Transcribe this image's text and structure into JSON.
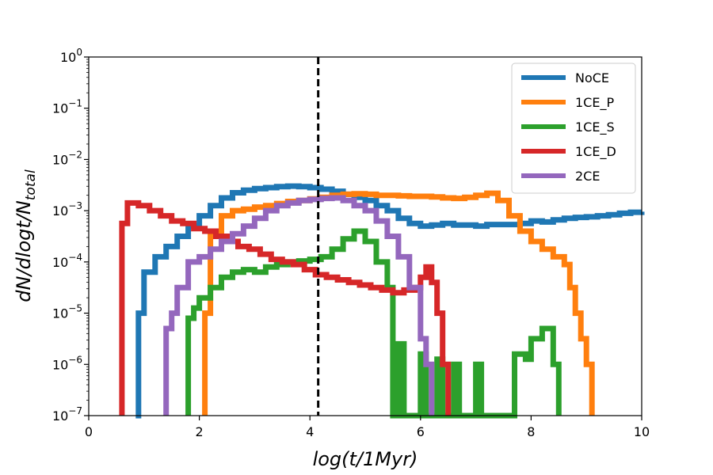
{
  "chart_data": {
    "type": "line",
    "step": true,
    "xlabel": "log(t/1Myr)",
    "ylabel": {
      "main": "dN/dlogt/N",
      "sub": "total"
    },
    "xlim": [
      0,
      10
    ],
    "ylim_log10": [
      -7,
      0
    ],
    "x_ticks": [
      0,
      2,
      4,
      6,
      8,
      10
    ],
    "x_tick_labels": [
      "0",
      "2",
      "4",
      "6",
      "8",
      "10"
    ],
    "y_ticks": [
      {
        "base": "10",
        "exp": "0",
        "log10": 0
      },
      {
        "base": "10",
        "exp": "−1",
        "log10": -1
      },
      {
        "base": "10",
        "exp": "−2",
        "log10": -2
      },
      {
        "base": "10",
        "exp": "−3",
        "log10": -3
      },
      {
        "base": "10",
        "exp": "−4",
        "log10": -4
      },
      {
        "base": "10",
        "exp": "−5",
        "log10": -5
      },
      {
        "base": "10",
        "exp": "−6",
        "log10": -6
      },
      {
        "base": "10",
        "exp": "−7",
        "log10": -7
      }
    ],
    "vline": {
      "x": 4.15,
      "style": "dashed",
      "color": "#000000"
    },
    "legend_position": "top-right",
    "series": [
      {
        "name": "NoCE",
        "color": "#1f77b4",
        "points": [
          [
            0.85,
            -7
          ],
          [
            0.9,
            -5
          ],
          [
            1.0,
            -4.2
          ],
          [
            1.2,
            -3.9
          ],
          [
            1.4,
            -3.7
          ],
          [
            1.6,
            -3.5
          ],
          [
            1.8,
            -3.3
          ],
          [
            2.0,
            -3.1
          ],
          [
            2.2,
            -2.9
          ],
          [
            2.4,
            -2.75
          ],
          [
            2.6,
            -2.65
          ],
          [
            2.8,
            -2.6
          ],
          [
            3.0,
            -2.57
          ],
          [
            3.2,
            -2.55
          ],
          [
            3.4,
            -2.53
          ],
          [
            3.6,
            -2.52
          ],
          [
            3.8,
            -2.53
          ],
          [
            4.0,
            -2.55
          ],
          [
            4.2,
            -2.58
          ],
          [
            4.4,
            -2.62
          ],
          [
            4.6,
            -2.68
          ],
          [
            4.8,
            -2.74
          ],
          [
            5.0,
            -2.8
          ],
          [
            5.2,
            -2.9
          ],
          [
            5.4,
            -3.0
          ],
          [
            5.6,
            -3.15
          ],
          [
            5.8,
            -3.25
          ],
          [
            6.0,
            -3.3
          ],
          [
            6.2,
            -3.28
          ],
          [
            6.4,
            -3.25
          ],
          [
            6.6,
            -3.28
          ],
          [
            6.8,
            -3.28
          ],
          [
            7.0,
            -3.3
          ],
          [
            7.2,
            -3.27
          ],
          [
            7.4,
            -3.27
          ],
          [
            7.6,
            -3.27
          ],
          [
            7.8,
            -3.25
          ],
          [
            8.0,
            -3.2
          ],
          [
            8.2,
            -3.22
          ],
          [
            8.4,
            -3.18
          ],
          [
            8.6,
            -3.15
          ],
          [
            8.8,
            -3.13
          ],
          [
            9.0,
            -3.12
          ],
          [
            9.2,
            -3.1
          ],
          [
            9.4,
            -3.08
          ],
          [
            9.6,
            -3.05
          ],
          [
            9.8,
            -3.03
          ],
          [
            10.0,
            -3.02
          ]
        ]
      },
      {
        "name": "1CE_P",
        "color": "#ff7f0e",
        "points": [
          [
            2.1,
            -7
          ],
          [
            2.1,
            -5.0
          ],
          [
            2.2,
            -3.5
          ],
          [
            2.4,
            -3.1
          ],
          [
            2.6,
            -3.0
          ],
          [
            2.8,
            -2.97
          ],
          [
            3.0,
            -2.93
          ],
          [
            3.2,
            -2.9
          ],
          [
            3.4,
            -2.86
          ],
          [
            3.6,
            -2.82
          ],
          [
            3.8,
            -2.8
          ],
          [
            4.0,
            -2.77
          ],
          [
            4.2,
            -2.74
          ],
          [
            4.4,
            -2.7
          ],
          [
            4.6,
            -2.68
          ],
          [
            4.8,
            -2.67
          ],
          [
            5.0,
            -2.68
          ],
          [
            5.2,
            -2.7
          ],
          [
            5.4,
            -2.7
          ],
          [
            5.6,
            -2.71
          ],
          [
            5.8,
            -2.72
          ],
          [
            6.0,
            -2.72
          ],
          [
            6.2,
            -2.73
          ],
          [
            6.4,
            -2.75
          ],
          [
            6.6,
            -2.76
          ],
          [
            6.8,
            -2.74
          ],
          [
            7.0,
            -2.7
          ],
          [
            7.2,
            -2.66
          ],
          [
            7.4,
            -2.8
          ],
          [
            7.6,
            -3.1
          ],
          [
            7.8,
            -3.4
          ],
          [
            8.0,
            -3.6
          ],
          [
            8.2,
            -3.75
          ],
          [
            8.4,
            -3.9
          ],
          [
            8.6,
            -4.05
          ],
          [
            8.7,
            -4.5
          ],
          [
            8.8,
            -5.0
          ],
          [
            8.9,
            -5.5
          ],
          [
            9.0,
            -6.0
          ],
          [
            9.1,
            -6.0
          ],
          [
            9.1,
            -7
          ]
        ]
      },
      {
        "name": "1CE_S",
        "color": "#2ca02c",
        "points": [
          [
            1.8,
            -7
          ],
          [
            1.8,
            -5.1
          ],
          [
            1.9,
            -4.9
          ],
          [
            2.0,
            -4.7
          ],
          [
            2.2,
            -4.5
          ],
          [
            2.4,
            -4.3
          ],
          [
            2.6,
            -4.2
          ],
          [
            2.8,
            -4.15
          ],
          [
            3.0,
            -4.2
          ],
          [
            3.2,
            -4.1
          ],
          [
            3.4,
            -4.05
          ],
          [
            3.6,
            -4.0
          ],
          [
            3.8,
            -3.98
          ],
          [
            4.0,
            -3.95
          ],
          [
            4.2,
            -3.9
          ],
          [
            4.4,
            -3.75
          ],
          [
            4.6,
            -3.55
          ],
          [
            4.8,
            -3.4
          ],
          [
            5.0,
            -3.6
          ],
          [
            5.2,
            -4.0
          ],
          [
            5.4,
            -4.5
          ],
          [
            5.5,
            -7
          ],
          [
            5.6,
            -5.6
          ],
          [
            5.7,
            -7
          ],
          [
            5.9,
            -7
          ],
          [
            6.0,
            -5.8
          ],
          [
            6.1,
            -7
          ],
          [
            6.3,
            -5.9
          ],
          [
            6.4,
            -7
          ],
          [
            6.6,
            -6.0
          ],
          [
            6.7,
            -7
          ],
          [
            7.0,
            -6.0
          ],
          [
            7.1,
            -7
          ],
          [
            7.6,
            -7
          ],
          [
            7.7,
            -5.8
          ],
          [
            7.9,
            -5.9
          ],
          [
            8.0,
            -5.5
          ],
          [
            8.2,
            -5.3
          ],
          [
            8.3,
            -5.3
          ],
          [
            8.4,
            -6.0
          ],
          [
            8.5,
            -7
          ]
        ]
      },
      {
        "name": "1CE_D",
        "color": "#d62728",
        "points": [
          [
            0.6,
            -7
          ],
          [
            0.6,
            -3.25
          ],
          [
            0.7,
            -2.85
          ],
          [
            0.9,
            -2.9
          ],
          [
            1.1,
            -3.0
          ],
          [
            1.3,
            -3.1
          ],
          [
            1.5,
            -3.2
          ],
          [
            1.7,
            -3.25
          ],
          [
            1.9,
            -3.35
          ],
          [
            2.1,
            -3.4
          ],
          [
            2.3,
            -3.5
          ],
          [
            2.5,
            -3.6
          ],
          [
            2.7,
            -3.7
          ],
          [
            2.9,
            -3.75
          ],
          [
            3.1,
            -3.85
          ],
          [
            3.3,
            -3.95
          ],
          [
            3.5,
            -4.0
          ],
          [
            3.7,
            -4.05
          ],
          [
            3.9,
            -4.15
          ],
          [
            4.1,
            -4.25
          ],
          [
            4.3,
            -4.3
          ],
          [
            4.5,
            -4.35
          ],
          [
            4.7,
            -4.4
          ],
          [
            4.9,
            -4.45
          ],
          [
            5.1,
            -4.5
          ],
          [
            5.3,
            -4.55
          ],
          [
            5.5,
            -4.6
          ],
          [
            5.7,
            -4.55
          ],
          [
            5.9,
            -4.5
          ],
          [
            6.0,
            -4.3
          ],
          [
            6.1,
            -4.1
          ],
          [
            6.2,
            -4.4
          ],
          [
            6.3,
            -5.0
          ],
          [
            6.4,
            -6.0
          ],
          [
            6.5,
            -7
          ]
        ]
      },
      {
        "name": "2CE",
        "color": "#9467bd",
        "points": [
          [
            1.4,
            -7
          ],
          [
            1.4,
            -5.3
          ],
          [
            1.5,
            -5.0
          ],
          [
            1.6,
            -4.5
          ],
          [
            1.8,
            -4.0
          ],
          [
            2.0,
            -3.9
          ],
          [
            2.2,
            -3.75
          ],
          [
            2.4,
            -3.6
          ],
          [
            2.6,
            -3.45
          ],
          [
            2.8,
            -3.3
          ],
          [
            3.0,
            -3.15
          ],
          [
            3.2,
            -3.0
          ],
          [
            3.4,
            -2.9
          ],
          [
            3.6,
            -2.85
          ],
          [
            3.8,
            -2.8
          ],
          [
            4.0,
            -2.78
          ],
          [
            4.2,
            -2.76
          ],
          [
            4.4,
            -2.75
          ],
          [
            4.6,
            -2.8
          ],
          [
            4.8,
            -2.9
          ],
          [
            5.0,
            -3.0
          ],
          [
            5.2,
            -3.2
          ],
          [
            5.4,
            -3.5
          ],
          [
            5.6,
            -3.9
          ],
          [
            5.8,
            -4.5
          ],
          [
            6.0,
            -5.5
          ],
          [
            6.1,
            -6.0
          ],
          [
            6.2,
            -7
          ]
        ]
      }
    ]
  }
}
